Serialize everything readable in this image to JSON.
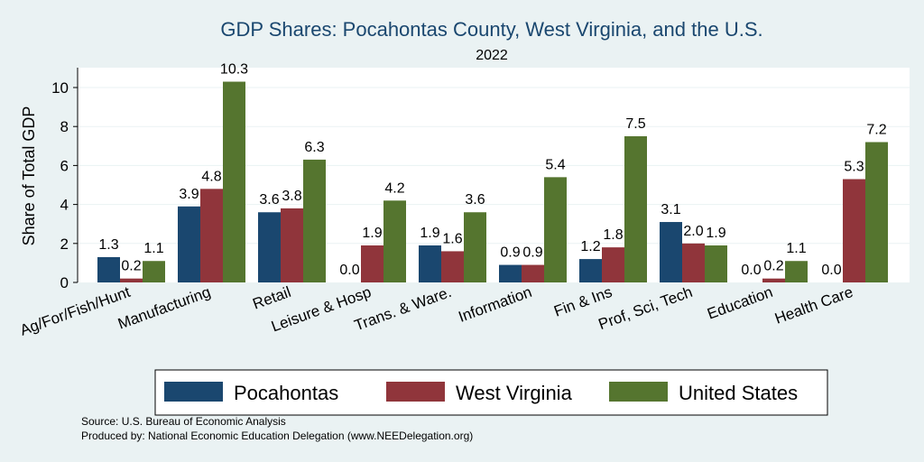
{
  "chart_data": {
    "type": "bar",
    "title": "GDP Shares: Pocahontas County, West Virginia, and the U.S.",
    "subtitle": "2022",
    "xlabel": "",
    "ylabel": "Share of Total GDP",
    "ylim": [
      0,
      11
    ],
    "yticks": [
      "0",
      "2",
      "4",
      "6",
      "8",
      "10"
    ],
    "grid": true,
    "legend_position": "bottom",
    "categories": [
      "Ag/For/Fish/Hunt",
      "Manufacturing",
      "Retail",
      "Leisure & Hosp",
      "Trans. & Ware.",
      "Information",
      "Fin & Ins",
      "Prof, Sci, Tech",
      "Education",
      "Health Care"
    ],
    "series": [
      {
        "name": "Pocahontas",
        "color": "#1a476f",
        "values": [
          1.3,
          3.9,
          3.6,
          0.0,
          1.9,
          0.9,
          1.2,
          3.1,
          0.0,
          0.0
        ]
      },
      {
        "name": "West Virginia",
        "color": "#90353b",
        "values": [
          0.2,
          4.8,
          3.8,
          1.9,
          1.6,
          0.9,
          1.8,
          2.0,
          0.2,
          5.3
        ]
      },
      {
        "name": "United States",
        "color": "#55752f",
        "values": [
          1.1,
          10.3,
          6.3,
          4.2,
          3.6,
          5.4,
          7.5,
          1.9,
          1.1,
          7.2
        ]
      }
    ]
  },
  "notes": {
    "source": "Source: U.S. Bureau of Economic Analysis",
    "produced": "Produced by: National Economic Education Delegation (www.NEEDelegation.org)"
  }
}
